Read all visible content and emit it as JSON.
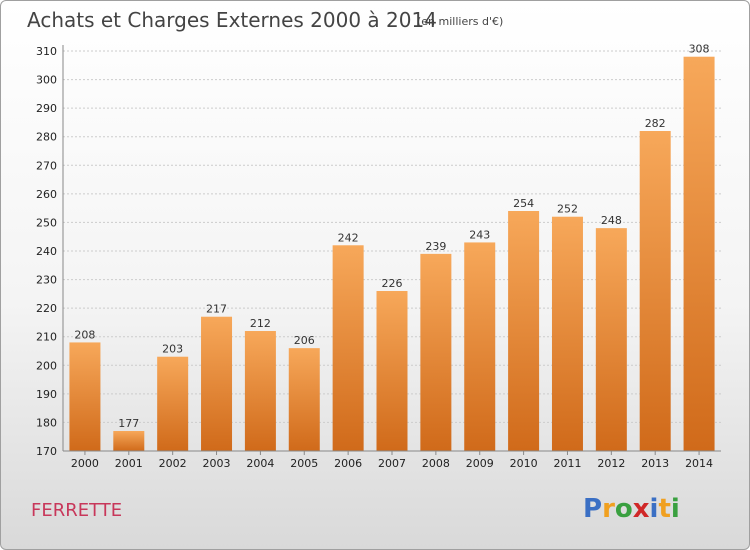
{
  "title": "Achats et Charges Externes 2000 à 2014",
  "subtitle": "(en milliers d'€)",
  "place": "FERRETTE",
  "logo": {
    "letters": [
      {
        "ch": "P",
        "color": "#3a6fc4"
      },
      {
        "ch": "r",
        "color": "#f0a020"
      },
      {
        "ch": "o",
        "color": "#3aa040"
      },
      {
        "ch": "x",
        "color": "#d02828"
      },
      {
        "ch": "i",
        "color": "#3a6fc4"
      },
      {
        "ch": "t",
        "color": "#f0a020"
      },
      {
        "ch": "i",
        "color": "#3aa040"
      }
    ]
  },
  "colors": {
    "bar_light": "#f7a85a",
    "bar_dark": "#d06a1a",
    "grid": "#cccccc"
  },
  "chart_data": {
    "type": "bar",
    "title": "Achats et Charges Externes 2000 à 2014",
    "subtitle": "(en milliers d'€)",
    "categories": [
      "2000",
      "2001",
      "2002",
      "2003",
      "2004",
      "2005",
      "2006",
      "2007",
      "2008",
      "2009",
      "2010",
      "2011",
      "2012",
      "2013",
      "2014"
    ],
    "values": [
      208,
      177,
      203,
      217,
      212,
      206,
      242,
      226,
      239,
      243,
      254,
      252,
      248,
      282,
      308
    ],
    "ylim": [
      170,
      310
    ],
    "yticks": [
      170,
      180,
      190,
      200,
      210,
      220,
      230,
      240,
      250,
      260,
      270,
      280,
      290,
      300,
      310
    ],
    "grid": true,
    "xlabel": "",
    "ylabel": ""
  }
}
